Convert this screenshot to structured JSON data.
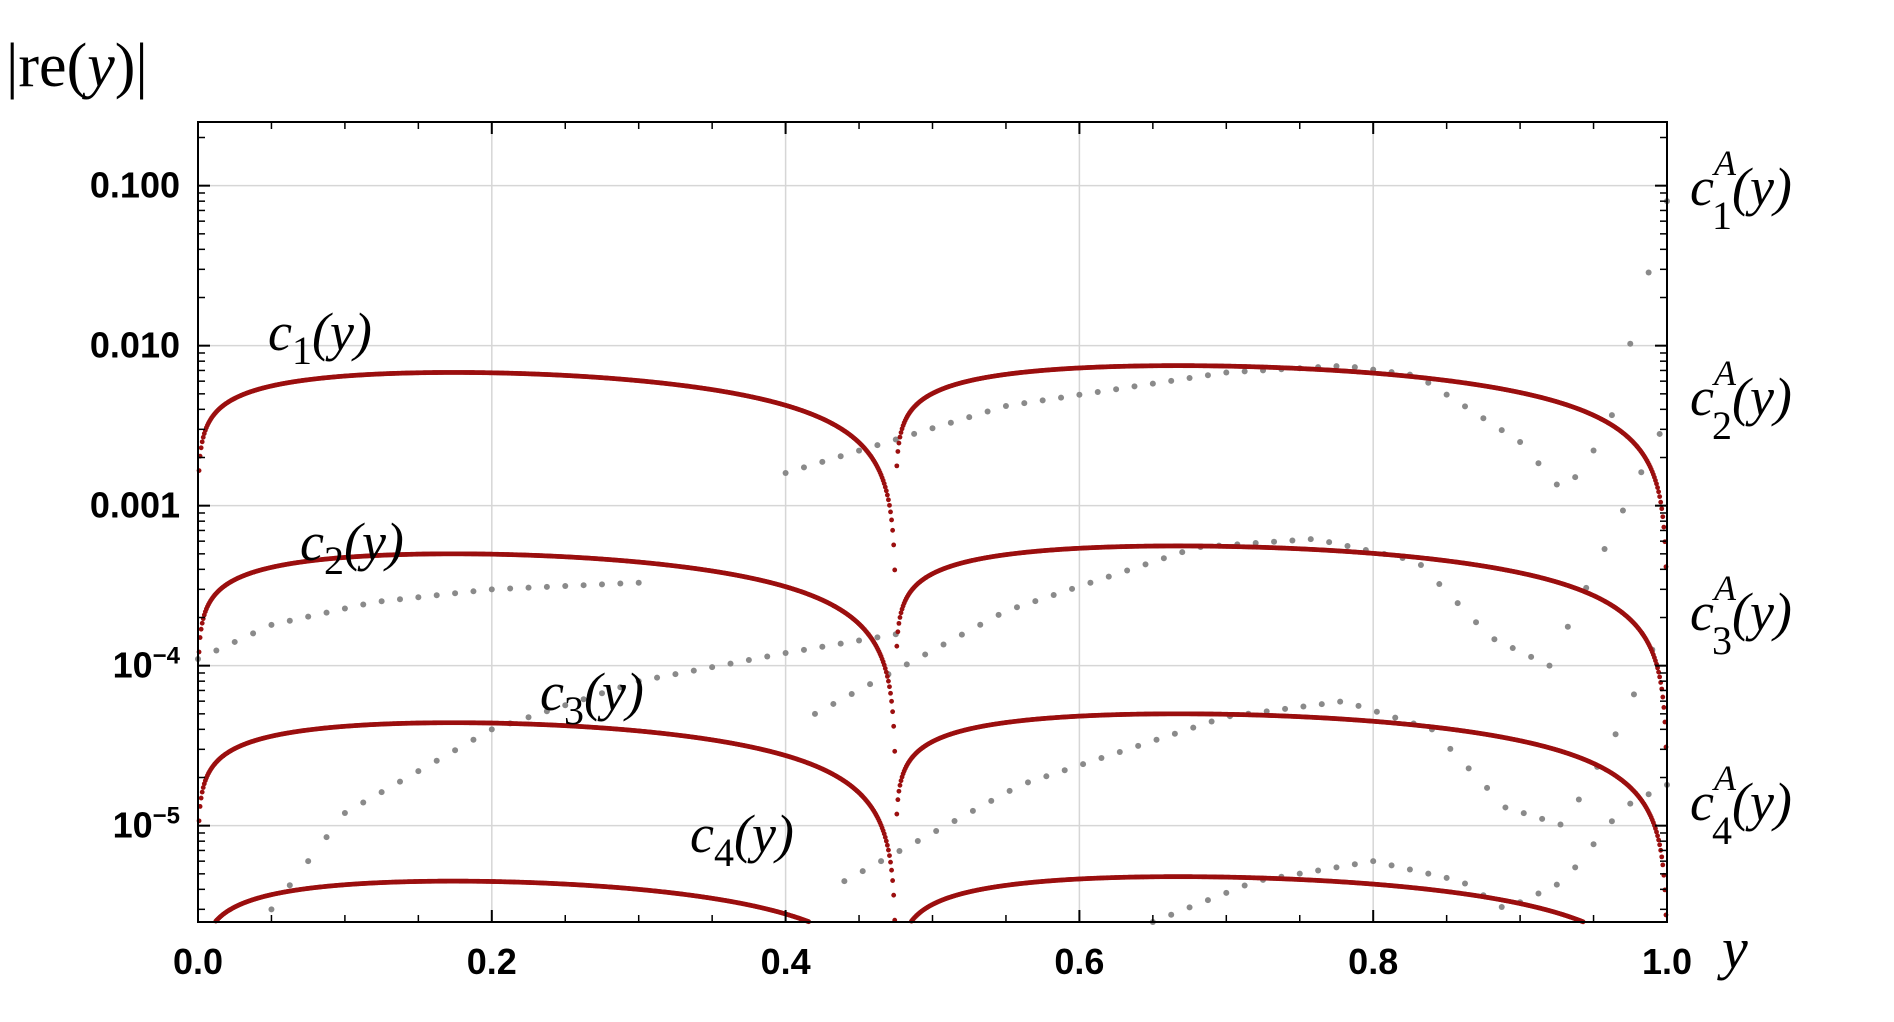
{
  "chart_data": {
    "type": "scatter",
    "ylabel": "|re(y)|",
    "xlabel": "y",
    "xlim": [
      0.0,
      1.0
    ],
    "ylim": [
      2.5e-06,
      0.25
    ],
    "yscale": "log",
    "grid": true,
    "x_ticks": [
      "0.0",
      "0.2",
      "0.4",
      "0.6",
      "0.8",
      "1.0"
    ],
    "y_ticks": [
      {
        "value": 1e-05,
        "base": "10",
        "exp": "−5"
      },
      {
        "value": 0.0001,
        "base": "10",
        "exp": "−4"
      },
      {
        "value": 0.001,
        "label": "0.001"
      },
      {
        "value": 0.01,
        "label": "0.010"
      },
      {
        "value": 0.1,
        "label": "0.100"
      }
    ],
    "series": [
      {
        "name": "c1(y)",
        "label": {
          "base": "c",
          "sub": "1",
          "arg": "(y)"
        },
        "style": "solid",
        "color": "#9b0f0f",
        "peaks": [
          0.0068,
          0.0075
        ],
        "zero": 0.475
      },
      {
        "name": "c2(y)",
        "label": {
          "base": "c",
          "sub": "2",
          "arg": "(y)"
        },
        "style": "solid",
        "color": "#9b0f0f",
        "peaks": [
          0.0005,
          0.00056
        ],
        "zero": 0.475
      },
      {
        "name": "c3(y)",
        "label": {
          "base": "c",
          "sub": "3",
          "arg": "(y)"
        },
        "style": "solid",
        "color": "#9b0f0f",
        "peaks": [
          4.4e-05,
          5e-05
        ],
        "zero": 0.475
      },
      {
        "name": "c4(y)",
        "label": {
          "base": "c",
          "sub": "4",
          "arg": "(y)"
        },
        "style": "solid",
        "color": "#9b0f0f",
        "peaks": [
          4.5e-06,
          4.8e-06
        ],
        "zero": 0.475
      },
      {
        "name": "c1A(y)",
        "label": {
          "base": "c",
          "sub": "1",
          "sup": "A",
          "arg": "(y)"
        },
        "style": "dotted",
        "color": "#8a8a8a",
        "anchors": [
          [
            0.4,
            0.0016
          ],
          [
            0.55,
            0.0042
          ],
          [
            0.7,
            0.0068
          ],
          [
            0.78,
            0.0075
          ],
          [
            0.83,
            0.0065
          ],
          [
            0.9,
            0.0025
          ],
          [
            0.93,
            0.0012
          ],
          [
            0.96,
            0.003
          ],
          [
            1.0,
            0.08
          ]
        ]
      },
      {
        "name": "c2A(y)",
        "label": {
          "base": "c",
          "sub": "2",
          "sup": "A",
          "arg": "(y)"
        },
        "style": "dotted",
        "color": "#8a8a8a",
        "anchors": [
          [
            0.42,
            5e-05
          ],
          [
            0.55,
            0.00022
          ],
          [
            0.68,
            0.00055
          ],
          [
            0.76,
            0.00062
          ],
          [
            0.83,
            0.00045
          ],
          [
            0.88,
            0.00015
          ],
          [
            0.92,
            0.0001
          ],
          [
            0.96,
            0.0006
          ],
          [
            1.0,
            0.0035
          ]
        ]
      },
      {
        "name": "c3A(y)",
        "label": {
          "base": "c",
          "sub": "3",
          "sup": "A",
          "arg": "(y)"
        },
        "style": "dotted",
        "color": "#8a8a8a",
        "anchors": [
          [
            0.44,
            4.5e-06
          ],
          [
            0.56,
            1.8e-05
          ],
          [
            0.7,
            4.8e-05
          ],
          [
            0.78,
            6e-05
          ],
          [
            0.84,
            4e-05
          ],
          [
            0.89,
            1.3e-05
          ],
          [
            0.93,
            1e-05
          ],
          [
            0.97,
            4.5e-05
          ],
          [
            1.0,
            0.00021
          ]
        ]
      },
      {
        "name": "c4A(y)",
        "label": {
          "base": "c",
          "sub": "4",
          "sup": "A",
          "arg": "(y)"
        },
        "style": "dotted",
        "color": "#8a8a8a",
        "anchors": [
          [
            0.65,
            2.5e-06
          ],
          [
            0.72,
            4.5e-06
          ],
          [
            0.8,
            6e-06
          ],
          [
            0.86,
            4.5e-06
          ],
          [
            0.89,
            3e-06
          ],
          [
            0.93,
            4.5e-06
          ],
          [
            0.97,
            1.3e-05
          ],
          [
            1.0,
            1.8e-05
          ]
        ]
      }
    ],
    "extra_dotted_curves": [
      {
        "description_color": "#8a8a8a",
        "anchors": [
          [
            0.0,
            0.00011
          ],
          [
            0.05,
            0.00018
          ],
          [
            0.12,
            0.00025
          ],
          [
            0.2,
            0.0003
          ],
          [
            0.3,
            0.00033
          ]
        ]
      },
      {
        "description_color": "#8a8a8a",
        "anchors": [
          [
            0.05,
            3e-06
          ],
          [
            0.1,
            1.2e-05
          ],
          [
            0.2,
            4e-05
          ],
          [
            0.3,
            8e-05
          ],
          [
            0.4,
            0.00012
          ],
          [
            0.48,
            0.00016
          ]
        ]
      }
    ]
  }
}
